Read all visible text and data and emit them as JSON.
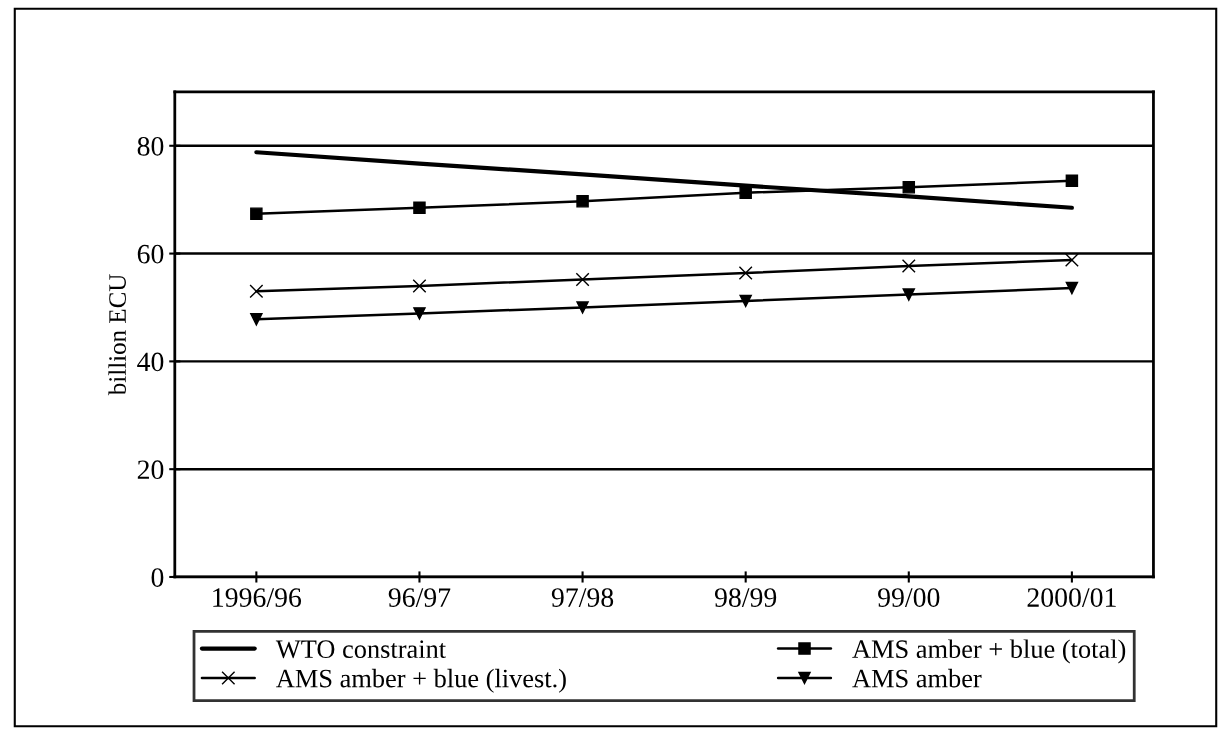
{
  "chart_data": {
    "type": "line",
    "ylabel": "billion ECU",
    "categories": [
      "1996/96",
      "96/97",
      "97/98",
      "98/99",
      "99/00",
      "2000/01"
    ],
    "series": [
      {
        "name": "WTO constraint",
        "color": "#000000",
        "marker": "none",
        "values": [
          78.8,
          76.7,
          74.7,
          72.6,
          70.6,
          68.5
        ]
      },
      {
        "name": "AMS amber + blue (total)",
        "color": "#000000",
        "marker": "square",
        "values": [
          67.4,
          68.5,
          69.7,
          71.3,
          72.3,
          73.5
        ]
      },
      {
        "name": "AMS amber + blue (livest.)",
        "color": "#000000",
        "marker": "cross",
        "values": [
          53.0,
          54.0,
          55.2,
          56.4,
          57.7,
          58.8
        ]
      },
      {
        "name": "AMS amber",
        "color": "#000000",
        "marker": "triangle",
        "values": [
          47.8,
          48.9,
          50.0,
          51.2,
          52.4,
          53.6
        ]
      }
    ],
    "ylim": [
      0,
      90
    ],
    "yticks": [
      0,
      20,
      40,
      60,
      80
    ],
    "grid": "y",
    "legend": "bottom",
    "line_style": "solid"
  }
}
